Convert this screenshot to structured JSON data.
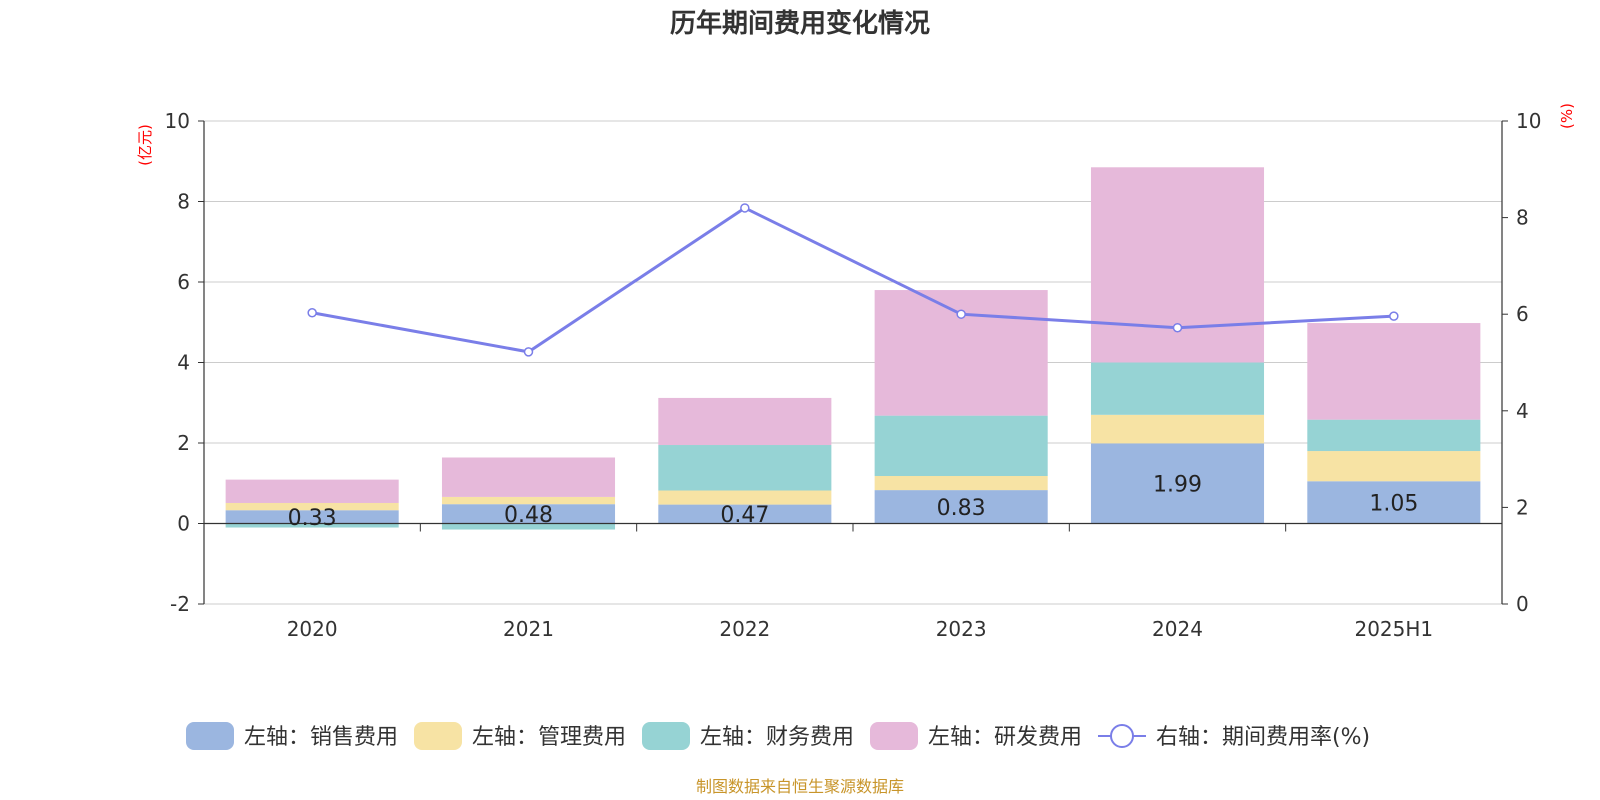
{
  "chart_data": {
    "type": "bar",
    "title": "历年期间费用变化情况",
    "categories": [
      "2020",
      "2021",
      "2022",
      "2023",
      "2024",
      "2025H1"
    ],
    "left_axis": {
      "unit": "(亿元)",
      "ylim": [
        -2,
        10
      ],
      "ticks": [
        -2,
        0,
        2,
        4,
        6,
        8,
        10
      ]
    },
    "right_axis": {
      "unit": "(%)",
      "ylim": [
        0,
        10
      ],
      "ticks": [
        0,
        2,
        4,
        6,
        8,
        10
      ]
    },
    "grid": true,
    "legend_position": "bottom",
    "series": [
      {
        "name": "左轴：销售费用",
        "axis": "left",
        "kind": "bar",
        "color": "#9bb6e0",
        "values": [
          0.33,
          0.48,
          0.47,
          0.83,
          1.99,
          1.05
        ],
        "show_labels": true
      },
      {
        "name": "左轴：管理费用",
        "axis": "left",
        "kind": "bar",
        "color": "#f7e3a4",
        "values": [
          0.18,
          0.18,
          0.35,
          0.35,
          0.71,
          0.75
        ]
      },
      {
        "name": "左轴：财务费用",
        "axis": "left",
        "kind": "bar",
        "color": "#96d3d4",
        "values": [
          -0.1,
          -0.15,
          1.13,
          1.5,
          1.3,
          0.78
        ]
      },
      {
        "name": "左轴：研发费用",
        "axis": "left",
        "kind": "bar",
        "color": "#e6b9da",
        "values": [
          0.58,
          0.98,
          1.17,
          3.12,
          4.85,
          2.4
        ]
      },
      {
        "name": "右轴：期间费用率(%)",
        "axis": "right",
        "kind": "line",
        "color": "#7a7ee8",
        "values": [
          6.03,
          5.22,
          8.2,
          6.0,
          5.72,
          5.96
        ]
      }
    ]
  },
  "footer": {
    "source": "制图数据来自恒生聚源数据库"
  }
}
